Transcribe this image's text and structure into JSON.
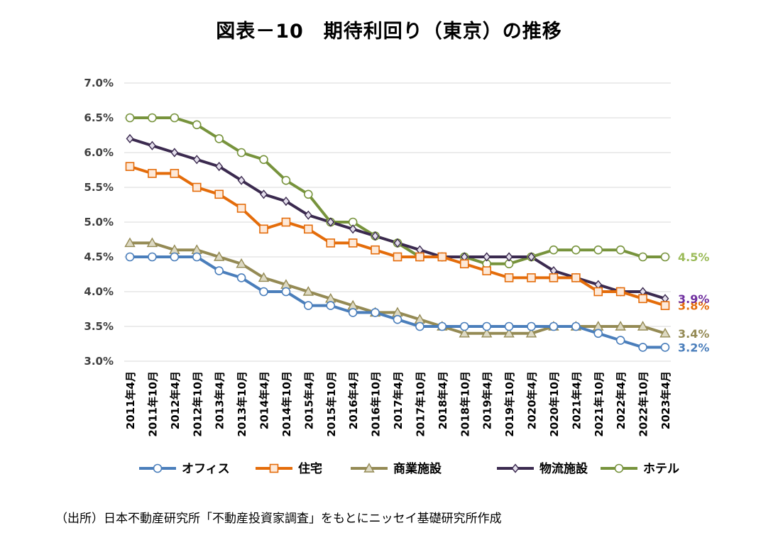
{
  "title": "図表－10　期待利回り（東京）の推移",
  "source_note": "（出所）日本不動産研究所「不動産投資家調査」をもとにニッセイ基礎研究所作成",
  "chart_data": {
    "type": "line",
    "categories": [
      "2011年4月",
      "2011年10月",
      "2012年4月",
      "2012年10月",
      "2013年4月",
      "2013年10月",
      "2014年4月",
      "2014年10月",
      "2015年4月",
      "2015年10月",
      "2016年4月",
      "2016年10月",
      "2017年4月",
      "2017年10月",
      "2018年4月",
      "2018年10月",
      "2019年4月",
      "2019年10月",
      "2020年4月",
      "2020年10月",
      "2021年4月",
      "2021年10月",
      "2022年4月",
      "2022年10月",
      "2023年4月"
    ],
    "y_ticks": [
      "3.0%",
      "3.5%",
      "4.0%",
      "4.5%",
      "5.0%",
      "5.5%",
      "6.0%",
      "6.5%",
      "7.0%"
    ],
    "ylim": [
      3.0,
      7.0
    ],
    "y_unit": "%",
    "grid": "horizontal",
    "legend_position": "bottom",
    "series": [
      {
        "name": "オフィス",
        "color": "#4a7ebb",
        "marker": "circle",
        "end_label": "3.2%",
        "values": [
          4.5,
          4.5,
          4.5,
          4.5,
          4.3,
          4.2,
          4.0,
          4.0,
          3.8,
          3.8,
          3.7,
          3.7,
          3.6,
          3.5,
          3.5,
          3.5,
          3.5,
          3.5,
          3.5,
          3.5,
          3.5,
          3.4,
          3.3,
          3.2,
          3.2
        ]
      },
      {
        "name": "住宅",
        "color": "#e46c0a",
        "marker": "square",
        "end_label": "3.8%",
        "values": [
          5.8,
          5.7,
          5.7,
          5.5,
          5.4,
          5.2,
          4.9,
          5.0,
          4.9,
          4.7,
          4.7,
          4.6,
          4.5,
          4.5,
          4.5,
          4.4,
          4.3,
          4.2,
          4.2,
          4.2,
          4.2,
          4.0,
          4.0,
          3.9,
          3.8
        ]
      },
      {
        "name": "商業施設",
        "color": "#948a54",
        "marker": "triangle",
        "end_label": "3.4%",
        "values": [
          4.7,
          4.7,
          4.6,
          4.6,
          4.5,
          4.4,
          4.2,
          4.1,
          4.0,
          3.9,
          3.8,
          3.7,
          3.7,
          3.6,
          3.5,
          3.4,
          3.4,
          3.4,
          3.4,
          3.5,
          3.5,
          3.5,
          3.5,
          3.5,
          3.4
        ]
      },
      {
        "name": "物流施設",
        "color": "#3b2a4f",
        "label_color": "#7030a0",
        "marker": "diamond",
        "end_label": "3.9%",
        "values": [
          6.2,
          6.1,
          6.0,
          5.9,
          5.8,
          5.6,
          5.4,
          5.3,
          5.1,
          5.0,
          4.9,
          4.8,
          4.7,
          4.6,
          4.5,
          4.5,
          4.5,
          4.5,
          4.5,
          4.3,
          4.2,
          4.1,
          4.0,
          4.0,
          3.9
        ]
      },
      {
        "name": "ホテル",
        "color": "#77933c",
        "label_color": "#9bbb59",
        "marker": "circle",
        "end_label": "4.5%",
        "values": [
          6.5,
          6.5,
          6.5,
          6.4,
          6.2,
          6.0,
          5.9,
          5.6,
          5.4,
          5.0,
          5.0,
          4.8,
          4.7,
          4.5,
          4.5,
          4.5,
          4.4,
          4.4,
          4.5,
          4.6,
          4.6,
          4.6,
          4.6,
          4.5,
          4.5
        ]
      }
    ]
  }
}
